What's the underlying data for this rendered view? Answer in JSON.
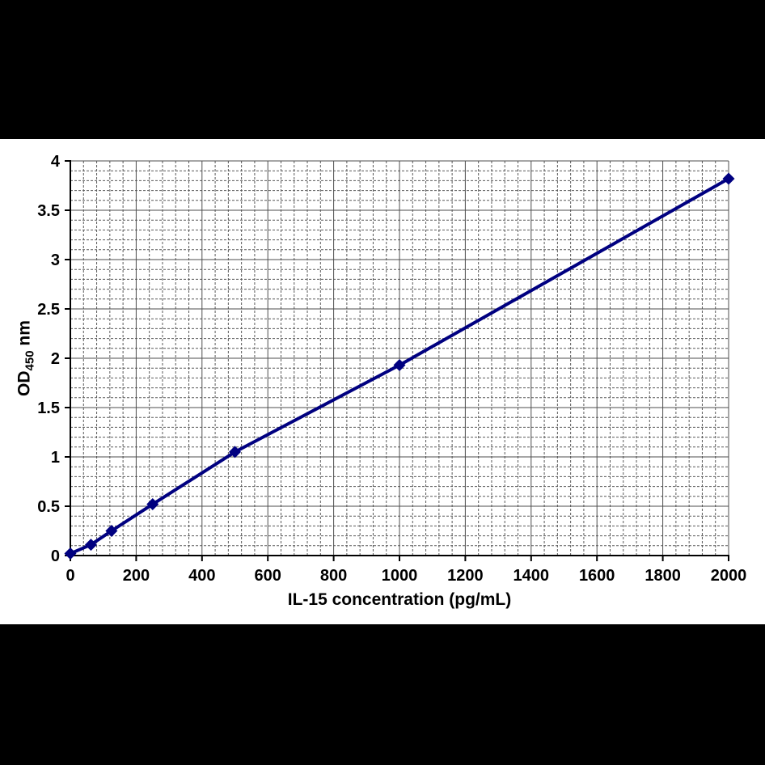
{
  "chart_data": {
    "type": "line",
    "title": "",
    "xlabel": "IL-15 concentration (pg/mL)",
    "ylabel": "OD450 nm",
    "ylabel_parts": {
      "prefix": "OD",
      "subscript": "450",
      "suffix": " nm"
    },
    "x": [
      0,
      62.5,
      125,
      250,
      500,
      1000,
      2000
    ],
    "y": [
      0.02,
      0.11,
      0.25,
      0.52,
      1.05,
      1.93,
      3.82
    ],
    "xlim": [
      0,
      2000
    ],
    "ylim": [
      0,
      4
    ],
    "x_major_step": 200,
    "y_major_step": 0.5,
    "x_minor_step": 40,
    "y_minor_step": 0.1,
    "x_tick_labels": [
      "0",
      "200",
      "400",
      "600",
      "800",
      "1000",
      "1200",
      "1400",
      "1600",
      "1800",
      "2000"
    ],
    "y_tick_labels": [
      "0",
      "0.5",
      "1",
      "1.5",
      "2",
      "2.5",
      "3",
      "3.5",
      "4"
    ],
    "grid": "major-solid minor-dashed",
    "legend": null,
    "marker": "diamond",
    "colors": {
      "line": "#000080",
      "marker": "#000080",
      "axis": "#000000",
      "major_grid": "#4d4d4d",
      "minor_grid": "#595959",
      "text": "#000000",
      "plot_background": "#ffffff",
      "letterbox": "#000000"
    }
  }
}
